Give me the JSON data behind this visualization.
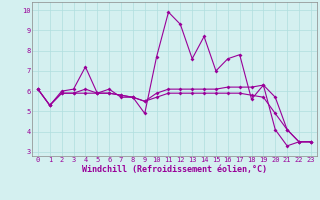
{
  "xlabel": "Windchill (Refroidissement éolien,°C)",
  "background_color": "#d4f0f0",
  "line_color": "#990099",
  "x_ticks": [
    0,
    1,
    2,
    3,
    4,
    5,
    6,
    7,
    8,
    9,
    10,
    11,
    12,
    13,
    14,
    15,
    16,
    17,
    18,
    19,
    20,
    21,
    22,
    23
  ],
  "ylim": [
    2.8,
    10.4
  ],
  "xlim": [
    -0.5,
    23.5
  ],
  "series1_x": [
    0,
    1,
    2,
    3,
    4,
    5,
    6,
    7,
    8,
    9,
    10,
    11,
    12,
    13,
    14,
    15,
    16,
    17,
    18,
    19,
    20,
    21,
    22,
    23
  ],
  "series1_y": [
    6.1,
    5.3,
    6.0,
    6.1,
    7.2,
    5.9,
    6.1,
    5.7,
    5.7,
    4.9,
    7.7,
    9.9,
    9.3,
    7.6,
    8.7,
    7.0,
    7.6,
    7.8,
    5.6,
    6.3,
    4.1,
    3.3,
    3.5,
    3.5
  ],
  "series2_x": [
    0,
    1,
    2,
    3,
    4,
    5,
    6,
    7,
    8,
    9,
    10,
    11,
    12,
    13,
    14,
    15,
    16,
    17,
    18,
    19,
    20,
    21,
    22,
    23
  ],
  "series2_y": [
    6.1,
    5.3,
    5.9,
    5.9,
    6.1,
    5.9,
    5.9,
    5.8,
    5.7,
    5.5,
    5.9,
    6.1,
    6.1,
    6.1,
    6.1,
    6.1,
    6.2,
    6.2,
    6.2,
    6.3,
    5.7,
    4.1,
    3.5,
    3.5
  ],
  "series3_x": [
    0,
    1,
    2,
    3,
    4,
    5,
    6,
    7,
    8,
    9,
    10,
    11,
    12,
    13,
    14,
    15,
    16,
    17,
    18,
    19,
    20,
    21,
    22,
    23
  ],
  "series3_y": [
    6.1,
    5.3,
    5.9,
    5.9,
    5.9,
    5.9,
    5.9,
    5.8,
    5.7,
    5.5,
    5.7,
    5.9,
    5.9,
    5.9,
    5.9,
    5.9,
    5.9,
    5.9,
    5.8,
    5.7,
    4.9,
    4.1,
    3.5,
    3.5
  ],
  "marker": "D",
  "markersize": 2.0,
  "linewidth": 0.8,
  "grid_color": "#b0dede",
  "tick_fontsize": 5.0,
  "xlabel_fontsize": 6.0,
  "yticks": [
    3,
    4,
    5,
    6,
    7,
    8,
    9,
    10
  ]
}
